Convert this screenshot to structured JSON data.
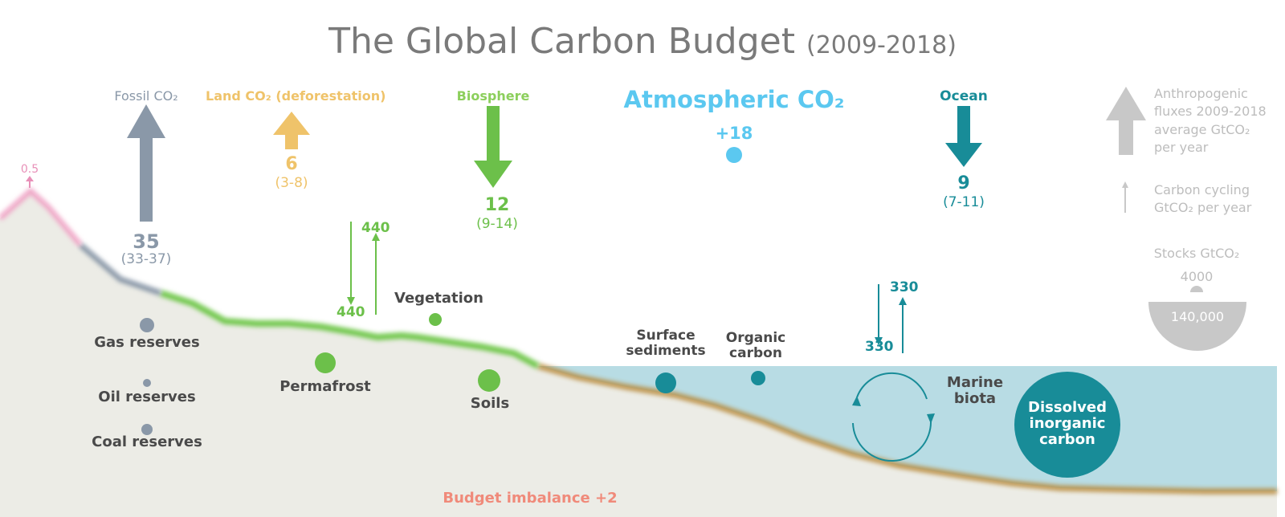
{
  "title": {
    "main": "The Global Carbon Budget",
    "period": "(2009-2018)"
  },
  "fluxes": {
    "fossil": {
      "label": "Fossil CO₂",
      "value": "35",
      "range": "(33-37)"
    },
    "land": {
      "label": "Land  CO₂ (deforestation)",
      "value": "6",
      "range": "(3-8)"
    },
    "biosphere": {
      "label": "Biosphere",
      "value": "12",
      "range": "(9-14)"
    },
    "atmosphere": {
      "label": "Atmospheric CO₂",
      "value": "+18"
    },
    "ocean": {
      "label": "Ocean",
      "value": "9",
      "range": "(7-11)"
    },
    "volcanic": {
      "value": "0.5"
    },
    "imbalance": "Budget imbalance +2"
  },
  "cycling": {
    "land_down": "440",
    "land_up": "440",
    "ocean_down": "330",
    "ocean_up": "330"
  },
  "stocks": {
    "gas": "Gas reserves",
    "oil": "Oil reserves",
    "coal": "Coal reserves",
    "permafrost": "Permafrost",
    "vegetation": "Vegetation",
    "soils": "Soils",
    "surface_sediments": "Surface\nsediments",
    "organic_carbon": "Organic\ncarbon",
    "marine_biota": "Marine\nbiota",
    "dissolved": "Dissolved\ninorganic\ncarbon"
  },
  "legend": {
    "anthropogenic": "Anthropogenic\nfluxes 2009-2018\naverage GtCO₂\nper year",
    "cycling": "Carbon cycling\nGtCO₂ per year",
    "stocks_title": "Stocks GtCO₂",
    "stock_small": "4000",
    "stock_large": "140,000"
  },
  "colors": {
    "fossil": "#8a98a8",
    "land_use": "#efc36a",
    "biosphere": "#6cc04a",
    "atmosphere": "#5bc8f0",
    "ocean": "#188c98",
    "imbalance": "#f08a7a",
    "volcanic": "#e890b8",
    "sediment": "#b88a3a",
    "sea": "#b8dce4",
    "ground": "#ecece6",
    "legend": "#c8c8c8"
  },
  "icons": [
    "up-arrow-icon",
    "down-arrow-icon",
    "cycle-arrows-icon",
    "stock-dot-icon",
    "half-circle-stock-icon"
  ]
}
